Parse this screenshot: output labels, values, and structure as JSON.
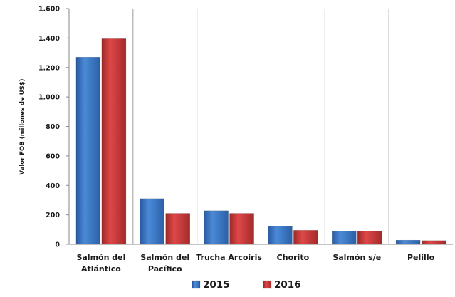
{
  "chart_data": {
    "type": "bar",
    "title": "",
    "xlabel": "",
    "ylabel": "Valor FOB (millones de US$)",
    "ylim": [
      0,
      1600
    ],
    "yticks": [
      0,
      200,
      400,
      600,
      800,
      1000,
      1200,
      1400,
      1600
    ],
    "ytick_labels": [
      "0",
      "200",
      "400",
      "600",
      "800",
      "1.000",
      "1.200",
      "1.400",
      "1.600"
    ],
    "categories": [
      [
        "Salmón del",
        "Atlántico"
      ],
      [
        "Salmón del",
        "Pacífico"
      ],
      [
        "Trucha Arcoiris"
      ],
      [
        "Chorito"
      ],
      [
        "Salmón s/e"
      ],
      [
        "Pelillo"
      ]
    ],
    "series": [
      {
        "name": "2015",
        "color": "#3a78c8",
        "values": [
          1270,
          310,
          228,
          123,
          90,
          28
        ]
      },
      {
        "name": "2016",
        "color": "#cc3b3b",
        "values": [
          1395,
          210,
          210,
          95,
          88,
          25
        ]
      }
    ],
    "grid": "vertical separators between categories",
    "legend_position": "bottom-center"
  }
}
